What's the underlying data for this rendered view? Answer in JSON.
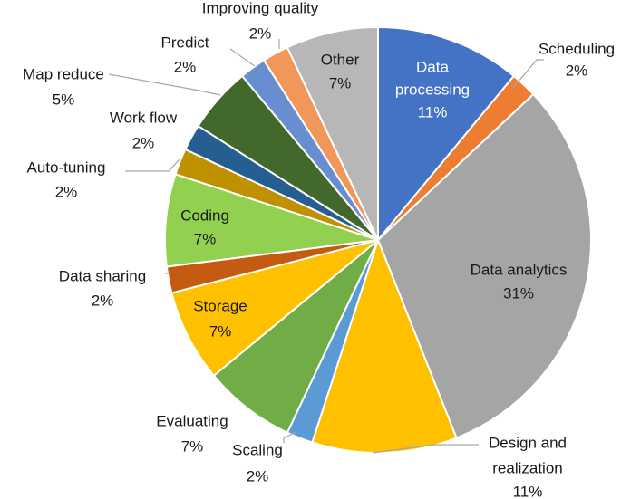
{
  "chart_data": {
    "type": "pie",
    "title": "",
    "legend": "none",
    "slices": [
      {
        "label": "Data processing",
        "value": 11,
        "value_label": "11%",
        "color": "#4472C4",
        "label_position": "inside",
        "label_color": "#ffffff"
      },
      {
        "label": "Scheduling",
        "value": 2,
        "value_label": "2%",
        "color": "#ED7D31",
        "label_position": "outside"
      },
      {
        "label": "Data analytics",
        "value": 31,
        "value_label": "31%",
        "color": "#A5A5A5",
        "label_position": "inside"
      },
      {
        "label": "Design and realization",
        "value": 11,
        "value_label": "11%",
        "color": "#FFC000",
        "label_position": "outside"
      },
      {
        "label": "Scaling",
        "value": 2,
        "value_label": "2%",
        "color": "#5B9BD5",
        "label_position": "outside"
      },
      {
        "label": "Evaluating",
        "value": 7,
        "value_label": "7%",
        "color": "#70AD47",
        "label_position": "outside"
      },
      {
        "label": "Storage",
        "value": 7,
        "value_label": "7%",
        "color": "#FFC000",
        "label_position": "inside"
      },
      {
        "label": "Data sharing",
        "value": 2,
        "value_label": "2%",
        "color": "#C55A11",
        "label_position": "outside"
      },
      {
        "label": "Coding",
        "value": 7,
        "value_label": "7%",
        "color": "#92D050",
        "label_position": "inside"
      },
      {
        "label": "Auto-tuning",
        "value": 2,
        "value_label": "2%",
        "color": "#BF9000",
        "label_position": "outside"
      },
      {
        "label": "Work flow",
        "value": 2,
        "value_label": "2%",
        "color": "#255E91",
        "label_position": "outside"
      },
      {
        "label": "Map reduce",
        "value": 5,
        "value_label": "5%",
        "color": "#43682B",
        "label_position": "outside"
      },
      {
        "label": "Predict",
        "value": 2,
        "value_label": "2%",
        "color": "#698ED0",
        "label_position": "outside"
      },
      {
        "label": "Improving quality",
        "value": 2,
        "value_label": "2%",
        "color": "#F1975A",
        "label_position": "outside"
      },
      {
        "label": "Other",
        "value": 7,
        "value_label": "7%",
        "color": "#B7B7B7",
        "label_position": "inside"
      }
    ]
  }
}
